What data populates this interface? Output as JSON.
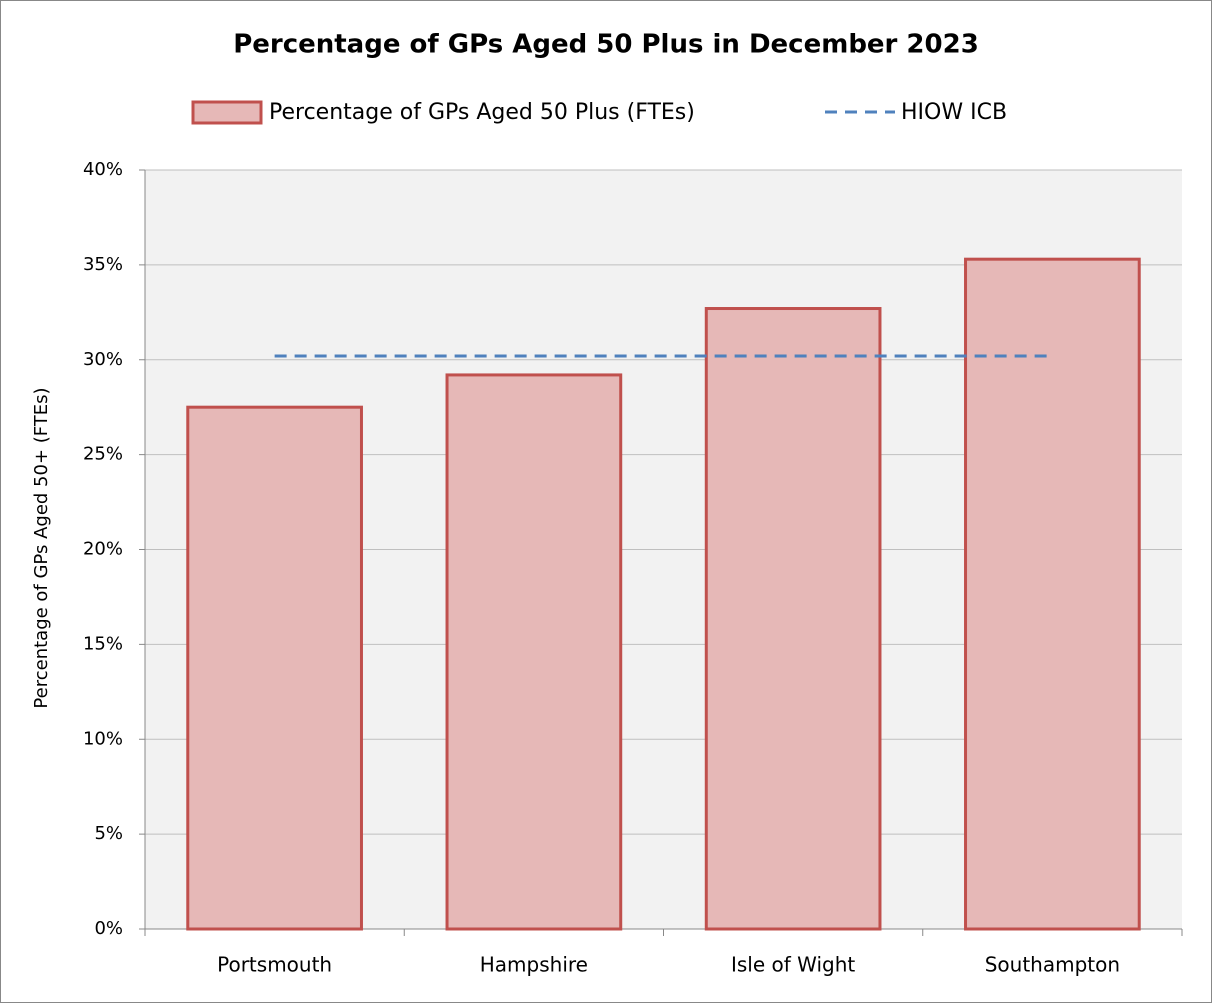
{
  "chart_data": {
    "type": "bar",
    "title": "Percentage of GPs Aged 50 Plus in December 2023",
    "y_label": "Percentage of GPs Aged 50+ (FTEs)",
    "categories": [
      "Portsmouth",
      "Hampshire",
      "Isle of Wight",
      "Southampton"
    ],
    "series": [
      {
        "name": "Percentage of GPs Aged 50 Plus (FTEs)",
        "type": "bar",
        "color": "#e6b8b7",
        "edge_color": "#c0504d",
        "values": [
          27.5,
          29.2,
          32.7,
          35.3
        ]
      },
      {
        "name": "HIOW ICB",
        "type": "line",
        "color": "#4f81bd",
        "dashed": true,
        "values": [
          30.2,
          30.2,
          30.2,
          30.2
        ]
      }
    ],
    "ylim": [
      0,
      40
    ],
    "yticks": [
      {
        "value": 0,
        "label": "0%"
      },
      {
        "value": 5,
        "label": "5%"
      },
      {
        "value": 10,
        "label": "10%"
      },
      {
        "value": 15,
        "label": "15%"
      },
      {
        "value": 20,
        "label": "20%"
      },
      {
        "value": 25,
        "label": "25%"
      },
      {
        "value": 30,
        "label": "30%"
      },
      {
        "value": 35,
        "label": "35%"
      },
      {
        "value": 40,
        "label": "40%"
      }
    ],
    "grid": true,
    "legend": "top"
  }
}
